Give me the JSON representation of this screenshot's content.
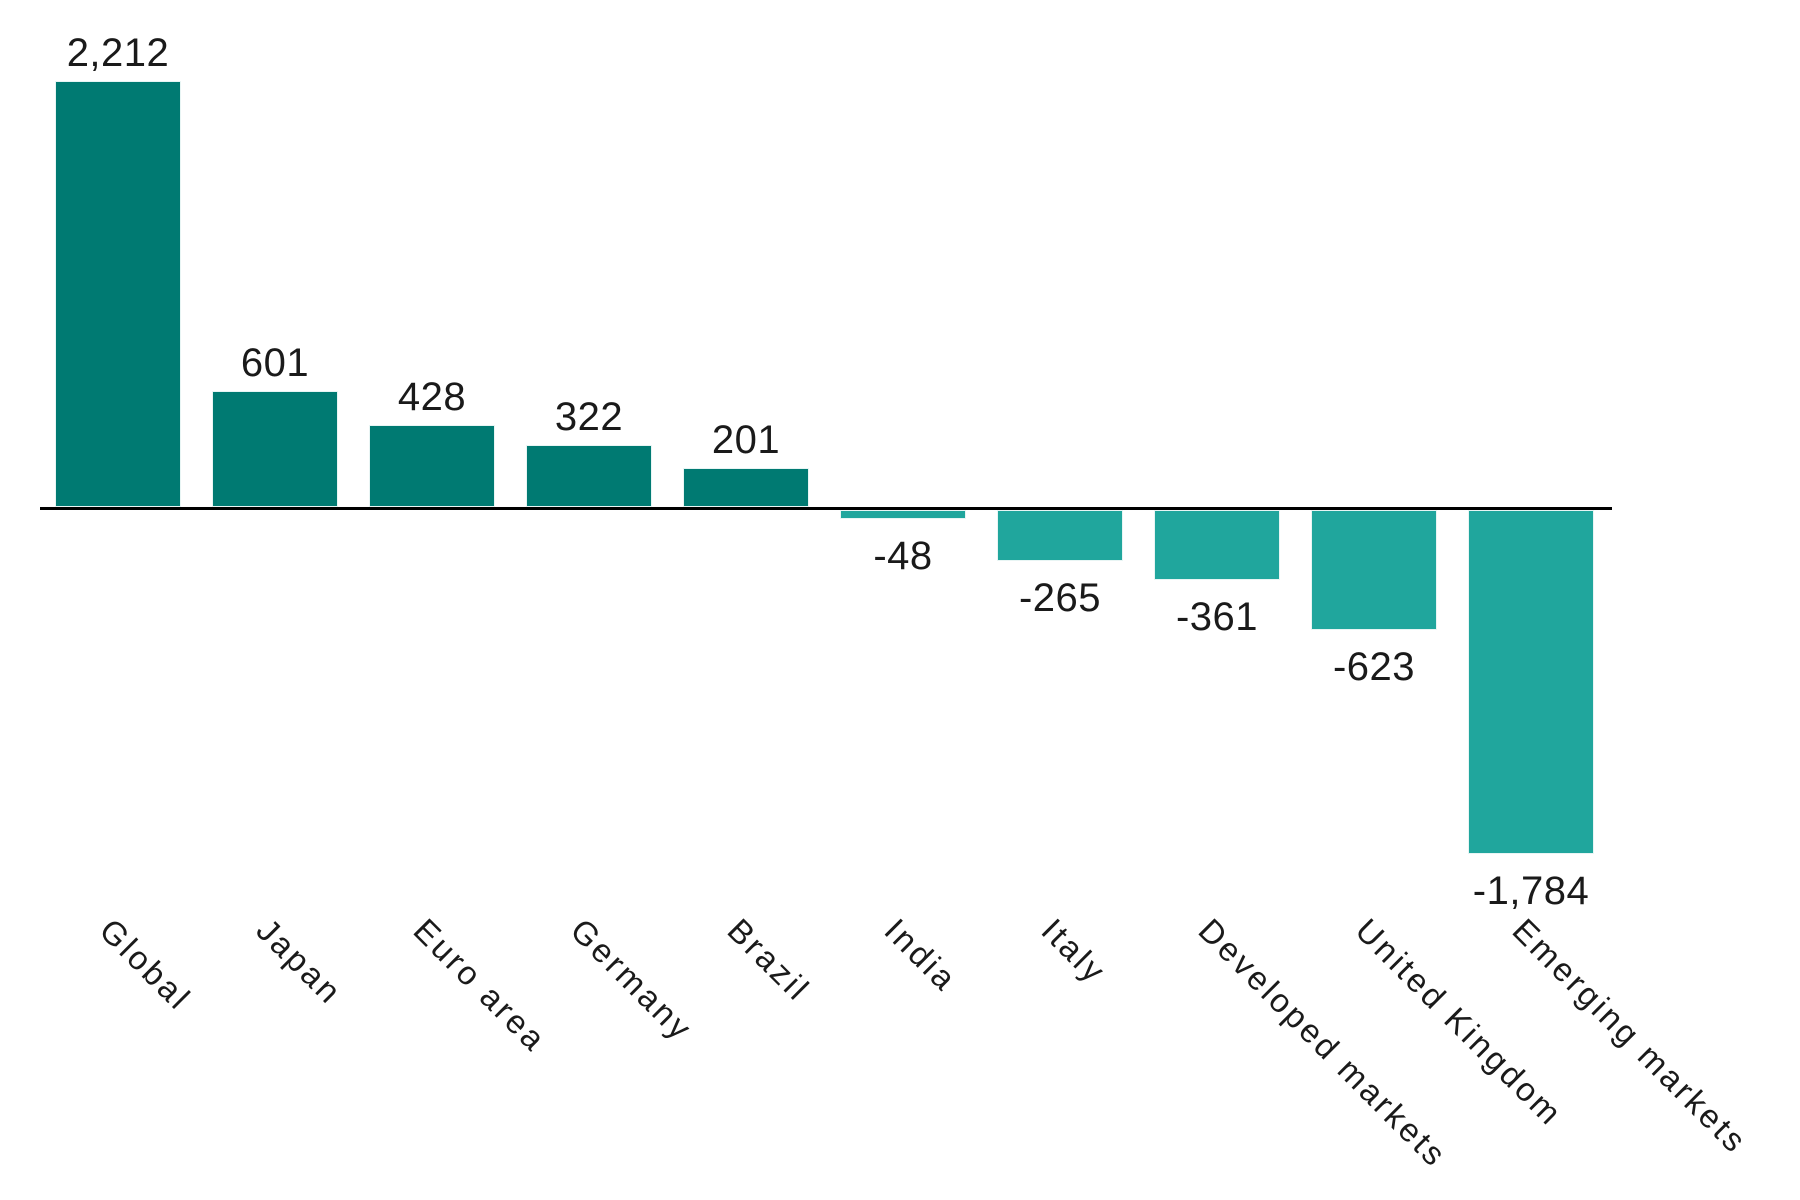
{
  "chart_data": {
    "type": "bar",
    "title": "",
    "xlabel": "",
    "ylabel": "",
    "categories": [
      "Global",
      "Japan",
      "Euro area",
      "Germany",
      "Brazil",
      "India",
      "Italy",
      "Developed markets",
      "United Kingdom",
      "Emerging markets"
    ],
    "values": [
      2212,
      601,
      428,
      322,
      201,
      -48,
      -265,
      -361,
      -623,
      -1784
    ],
    "value_labels": [
      "2,212",
      "601",
      "428",
      "322",
      "201",
      "-48",
      "-265",
      "-361",
      "-623",
      "-1,784"
    ],
    "ylim": [
      -1850,
      2300
    ],
    "grid": false,
    "legend": false,
    "x_tick_rotation_deg": 45,
    "bar_label_position": "outside-end",
    "colors": {
      "positive_bar": "#007A72",
      "negative_bar": "#20A69D",
      "bar_edge": "#E8F5F4",
      "axis": "#000000",
      "text": "#1A1A1A"
    }
  }
}
